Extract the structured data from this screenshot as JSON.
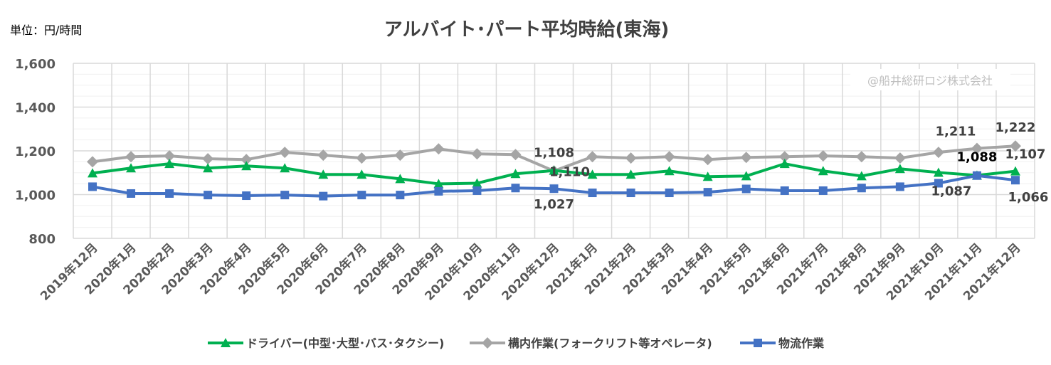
{
  "chart_data": {
    "type": "line",
    "title": "アルバイト･パート平均時給(東海)",
    "unit_label": "単位：円/時間",
    "watermark": "@船井総研ロジ株式会社",
    "ylim": [
      800,
      1600
    ],
    "yticks": [
      800,
      1000,
      1200,
      1400,
      1600
    ],
    "ytick_labels": [
      "800",
      "1,000",
      "1,200",
      "1,400",
      "1,600"
    ],
    "grid": true,
    "legend_position": "bottom",
    "categories": [
      "2019年12月",
      "2020年1月",
      "2020年2月",
      "2020年3月",
      "2020年4月",
      "2020年5月",
      "2020年6月",
      "2020年7月",
      "2020年8月",
      "2020年9月",
      "2020年10月",
      "2020年11月",
      "2020年12月",
      "2021年1月",
      "2021年2月",
      "2021年3月",
      "2021年4月",
      "2021年5月",
      "2021年6月",
      "2021年7月",
      "2021年8月",
      "2021年9月",
      "2021年10月",
      "2021年11月",
      "2021年12月"
    ],
    "series": [
      {
        "name": "ドライバー(中型･大型･バス･タクシー)",
        "color": "#00b050",
        "marker": "triangle",
        "values": [
          1098,
          1121,
          1141,
          1121,
          1131,
          1121,
          1092,
          1092,
          1072,
          1049,
          1052,
          1095,
          1110,
          1092,
          1092,
          1108,
          1082,
          1085,
          1141,
          1108,
          1085,
          1118,
          1101,
          1088,
          1107
        ],
        "labels": [
          {
            "index": 12,
            "text": "1,110",
            "pos": "right"
          },
          {
            "index": 23,
            "text": "1,088",
            "pos": "above",
            "bold": true
          },
          {
            "index": 24,
            "text": "1,107",
            "pos": "above-right"
          }
        ]
      },
      {
        "name": "構内作業(フォークリフト等オペレータ)",
        "color": "#a5a5a5",
        "marker": "diamond",
        "values": [
          1150,
          1173,
          1177,
          1164,
          1160,
          1193,
          1180,
          1167,
          1180,
          1209,
          1186,
          1183,
          1108,
          1173,
          1167,
          1173,
          1160,
          1170,
          1173,
          1177,
          1173,
          1167,
          1193,
          1211,
          1222
        ],
        "labels": [
          {
            "index": 12,
            "text": "1,108",
            "pos": "above"
          },
          {
            "index": 23,
            "text": "1,211",
            "pos": "above-left"
          },
          {
            "index": 24,
            "text": "1,222",
            "pos": "above"
          }
        ]
      },
      {
        "name": "物流作業",
        "color": "#4472c4",
        "marker": "square",
        "values": [
          1036,
          1005,
          1005,
          998,
          995,
          998,
          993,
          998,
          998,
          1015,
          1018,
          1030,
          1027,
          1008,
          1008,
          1008,
          1011,
          1026,
          1018,
          1018,
          1030,
          1036,
          1052,
          1087,
          1066
        ],
        "labels": [
          {
            "index": 12,
            "text": "1,027",
            "pos": "below"
          },
          {
            "index": 23,
            "text": "1,087",
            "pos": "below-left"
          },
          {
            "index": 24,
            "text": "1,066",
            "pos": "below-right"
          }
        ]
      }
    ]
  }
}
